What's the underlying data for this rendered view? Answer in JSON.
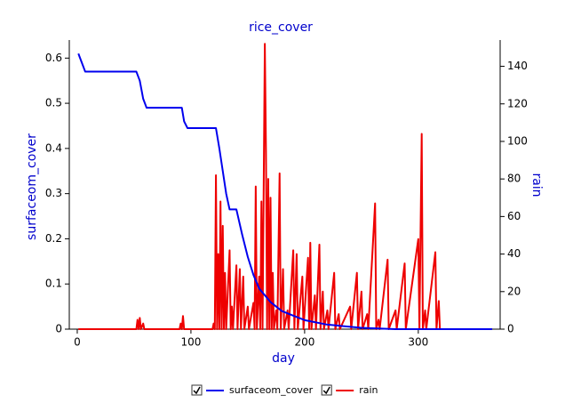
{
  "chart_data": {
    "type": "line",
    "title": "rice_cover",
    "x_label": "day",
    "y_label": "surfaceom_cover",
    "y2_label": "rain",
    "xlim": [
      -7,
      372
    ],
    "xticks": [
      0,
      100,
      200,
      300
    ],
    "ylim": [
      0,
      0.64
    ],
    "yticks": [
      0,
      0.1,
      0.2,
      0.3,
      0.4,
      0.5,
      0.6
    ],
    "y2lim": [
      0,
      154
    ],
    "y2ticks": [
      0,
      20,
      40,
      60,
      80,
      100,
      120,
      140
    ],
    "legend": "bottom",
    "series": [
      {
        "name": "surfaceom_cover",
        "color": "#0000ee",
        "x": [
          1,
          4,
          7,
          52,
          55,
          58,
          61,
          92,
          94,
          97,
          122,
          125,
          128,
          131,
          134,
          140,
          145,
          150,
          155,
          160,
          170,
          180,
          190,
          200,
          220,
          250,
          280,
          365
        ],
        "values": [
          0.61,
          0.59,
          0.57,
          0.57,
          0.55,
          0.51,
          0.49,
          0.49,
          0.46,
          0.445,
          0.445,
          0.4,
          0.35,
          0.3,
          0.265,
          0.265,
          0.21,
          0.16,
          0.12,
          0.09,
          0.06,
          0.04,
          0.03,
          0.02,
          0.01,
          0.003,
          0,
          0
        ]
      },
      {
        "name": "rain",
        "color": "#ee0000",
        "axis": "y2",
        "x": [
          1,
          52,
          53,
          54,
          55,
          56,
          58,
          59,
          90,
          91,
          92,
          93,
          94,
          119,
          120,
          121,
          122,
          123,
          124,
          125,
          126,
          127,
          128,
          129,
          130,
          131,
          134,
          135,
          136,
          137,
          140,
          141,
          143,
          144,
          146,
          147,
          150,
          151,
          155,
          156,
          157,
          158,
          160,
          161,
          162,
          163,
          165,
          166,
          167,
          168,
          169,
          170,
          171,
          172,
          173,
          175,
          176,
          178,
          179,
          181,
          182,
          185,
          186,
          190,
          191,
          193,
          194,
          198,
          199,
          203,
          204,
          205,
          206,
          209,
          210,
          213,
          214,
          216,
          217,
          220,
          221,
          226,
          227,
          230,
          231,
          240,
          241,
          246,
          247,
          250,
          251,
          255,
          256,
          262,
          263,
          265,
          266,
          273,
          274,
          280,
          281,
          288,
          289,
          300,
          301,
          303,
          304,
          306,
          307,
          315,
          316,
          318,
          319,
          365
        ],
        "values": [
          0,
          0,
          5,
          0,
          6,
          0,
          3,
          0,
          0,
          3,
          0,
          7,
          0,
          0,
          3,
          0,
          82,
          0,
          40,
          0,
          68,
          0,
          55,
          0,
          30,
          0,
          42,
          0,
          12,
          0,
          34,
          0,
          32,
          0,
          28,
          0,
          12,
          0,
          14,
          0,
          76,
          0,
          28,
          0,
          68,
          0,
          152,
          95,
          0,
          80,
          0,
          70,
          0,
          30,
          0,
          10,
          0,
          83,
          0,
          32,
          0,
          10,
          0,
          42,
          0,
          40,
          0,
          28,
          0,
          38,
          0,
          46,
          0,
          18,
          0,
          45,
          0,
          20,
          0,
          10,
          0,
          30,
          0,
          8,
          0,
          12,
          0,
          30,
          0,
          20,
          0,
          8,
          0,
          67,
          0,
          5,
          0,
          37,
          0,
          10,
          0,
          35,
          0,
          48,
          0,
          104,
          0,
          10,
          0,
          41,
          0,
          15,
          0,
          0
        ]
      }
    ]
  }
}
